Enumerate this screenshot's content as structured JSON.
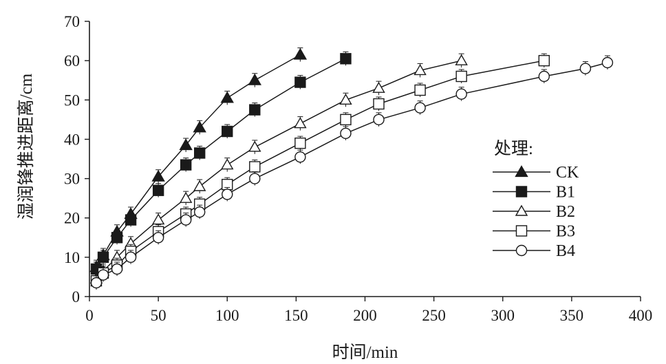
{
  "chart_data": {
    "type": "line",
    "xlabel": "时间/min",
    "ylabel": "湿润锋推进距离/cm",
    "xlim": [
      0,
      400
    ],
    "ylim": [
      0,
      70
    ],
    "xticks": [
      0,
      50,
      100,
      150,
      200,
      250,
      300,
      350,
      400
    ],
    "yticks": [
      0,
      10,
      20,
      30,
      40,
      50,
      60,
      70
    ],
    "grid": false,
    "legend": {
      "title": "处理:",
      "placement": "right"
    },
    "series": [
      {
        "name": "CK",
        "marker": "filled-triangle",
        "x": [
          5,
          10,
          20,
          30,
          50,
          70,
          80,
          100,
          120,
          153
        ],
        "y": [
          7.5,
          10.5,
          16.5,
          21,
          30.5,
          38.5,
          43,
          50.5,
          55,
          61.5
        ]
      },
      {
        "name": "B1",
        "marker": "filled-square",
        "x": [
          5,
          10,
          20,
          30,
          50,
          70,
          80,
          100,
          120,
          153,
          186
        ],
        "y": [
          7,
          10,
          15,
          19.5,
          27,
          33.5,
          36.5,
          42,
          47.5,
          54.5,
          60.5
        ]
      },
      {
        "name": "B2",
        "marker": "open-triangle",
        "x": [
          5,
          10,
          20,
          30,
          50,
          70,
          80,
          100,
          120,
          153,
          186,
          210,
          240,
          270
        ],
        "y": [
          4.5,
          6.5,
          10,
          13.5,
          19.5,
          25,
          28,
          33.5,
          38,
          44,
          50,
          53,
          57.5,
          60
        ]
      },
      {
        "name": "B3",
        "marker": "open-square",
        "x": [
          5,
          10,
          20,
          30,
          50,
          70,
          80,
          100,
          120,
          153,
          186,
          210,
          240,
          270,
          330
        ],
        "y": [
          4,
          6,
          8,
          11.5,
          16.5,
          21,
          23.5,
          28.5,
          33,
          39,
          45,
          49,
          52.5,
          56,
          60
        ]
      },
      {
        "name": "B4",
        "marker": "open-circle",
        "x": [
          5,
          10,
          20,
          30,
          50,
          70,
          80,
          100,
          120,
          153,
          186,
          210,
          240,
          270,
          330,
          360,
          376
        ],
        "y": [
          3.5,
          5.5,
          7,
          10,
          15,
          19.5,
          21.5,
          26,
          30,
          35.5,
          41.5,
          45,
          48,
          51.5,
          56,
          58,
          59.5
        ]
      }
    ]
  }
}
